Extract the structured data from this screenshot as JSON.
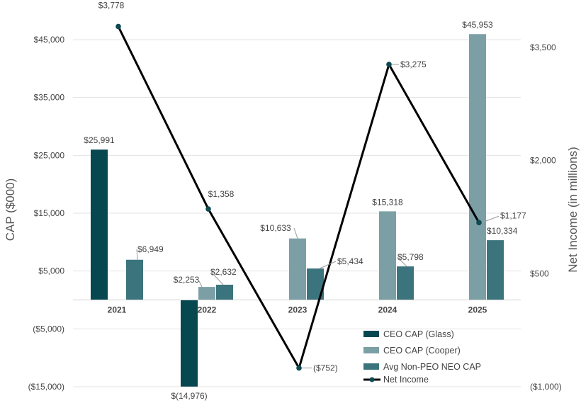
{
  "chart_data": {
    "type": "bar",
    "categories": [
      "2021",
      "2022",
      "2023",
      "2024",
      "2025"
    ],
    "y_left": {
      "label": "CAP ($000)",
      "range": [
        -15000,
        45000
      ],
      "ticks": [
        45000,
        35000,
        25000,
        15000,
        5000,
        -5000,
        -15000
      ],
      "tick_labels": [
        "$45,000",
        "$35,000",
        "$25,000",
        "$15,000",
        "$5,000",
        "($5,000)",
        "($15,000)"
      ]
    },
    "y_right": {
      "label": "Net Income (in millions)",
      "range": [
        -1000,
        3500
      ],
      "ticks": [
        3500,
        2000,
        500,
        -1000
      ],
      "tick_labels": [
        "$3,500",
        "$2,000",
        "$500",
        "($1,000)"
      ]
    },
    "grid": true,
    "legend_position": "bottom-right",
    "series": [
      {
        "name": "CEO CAP (Glass)",
        "type": "bar",
        "axis": "left",
        "color": "#074750",
        "values": [
          25991,
          -14976,
          null,
          null,
          null
        ],
        "labels": [
          "$25,991",
          "$(14,976)",
          "",
          "",
          ""
        ]
      },
      {
        "name": "CEO CAP (Cooper)",
        "type": "bar",
        "axis": "left",
        "color": "#7c9fa6",
        "values": [
          null,
          2253,
          10633,
          15318,
          45953
        ],
        "labels": [
          "",
          "$2,253",
          "$10,633",
          "$15,318",
          "$45,953"
        ]
      },
      {
        "name": "Avg Non-PEO NEO CAP",
        "type": "bar",
        "axis": "left",
        "color": "#3b747c",
        "values": [
          6949,
          2632,
          5434,
          5798,
          10334
        ],
        "labels": [
          "$6,949",
          "$2,632",
          "$5,434",
          "$5,798",
          "$10,334"
        ]
      },
      {
        "name": "Net Income",
        "type": "line",
        "axis": "right",
        "color": "#000000",
        "marker_color": "#0d4a52",
        "values": [
          3778,
          1358,
          -752,
          3275,
          1177
        ],
        "labels": [
          "$3,778",
          "$1,358",
          "($752)",
          "$3,275",
          "$1,177"
        ]
      }
    ]
  }
}
